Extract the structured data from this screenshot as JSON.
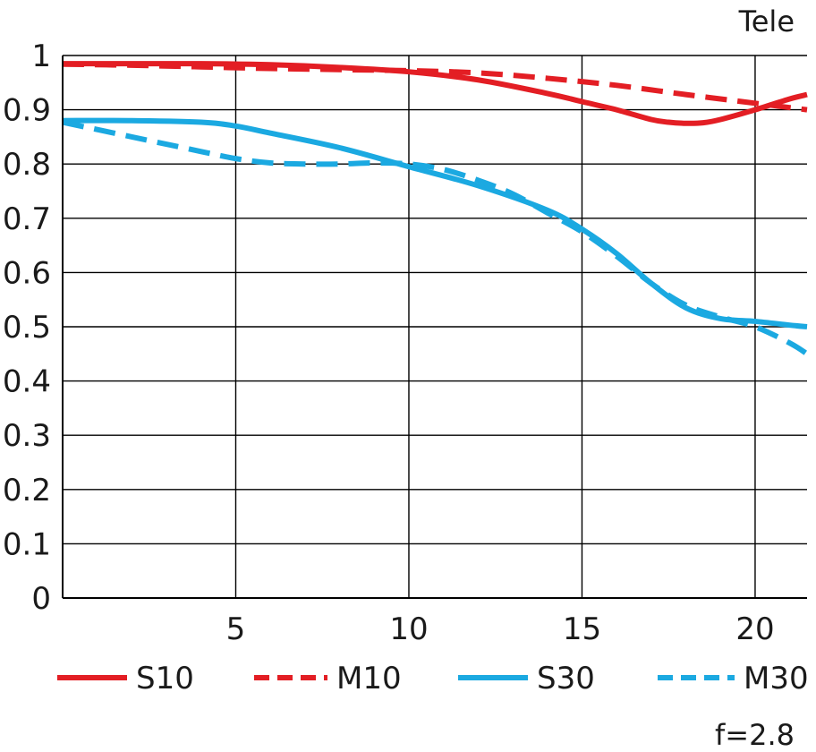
{
  "chart_data": {
    "type": "line",
    "title": "Tele",
    "annotation": "f=2.8",
    "xlim": [
      0,
      21.5
    ],
    "ylim": [
      0,
      1
    ],
    "x_ticks": [
      5,
      10,
      15,
      20
    ],
    "y_ticks": [
      0,
      0.1,
      0.2,
      0.3,
      0.4,
      0.5,
      0.6,
      0.7,
      0.8,
      0.9,
      1
    ],
    "y_tick_labels": [
      "0",
      "0.1",
      "0.2",
      "0.3",
      "0.4",
      "0.5",
      "0.6",
      "0.7",
      "0.8",
      "0.9",
      "1"
    ],
    "x_tick_labels": [
      "5",
      "10",
      "15",
      "20"
    ],
    "grid": true,
    "legend_position": "bottom",
    "series": [
      {
        "name": "S10",
        "color": "#e31e24",
        "dash": "solid",
        "x": [
          0,
          2,
          4,
          6,
          8,
          10,
          12,
          14,
          15,
          16,
          17,
          17.5,
          18,
          18.5,
          19,
          20,
          21,
          21.5
        ],
        "y": [
          0.985,
          0.985,
          0.985,
          0.983,
          0.978,
          0.97,
          0.955,
          0.93,
          0.915,
          0.9,
          0.882,
          0.877,
          0.875,
          0.876,
          0.882,
          0.9,
          0.92,
          0.928
        ]
      },
      {
        "name": "M10",
        "color": "#e31e24",
        "dash": "dashed",
        "x": [
          0,
          2,
          4,
          6,
          8,
          10,
          12,
          14,
          16,
          18,
          20,
          21.5
        ],
        "y": [
          0.984,
          0.982,
          0.979,
          0.976,
          0.974,
          0.972,
          0.968,
          0.958,
          0.945,
          0.928,
          0.912,
          0.9
        ]
      },
      {
        "name": "S30",
        "color": "#1ba9e1",
        "dash": "solid",
        "x": [
          0,
          2,
          4,
          5,
          6,
          8,
          10,
          12,
          14,
          15,
          16,
          17,
          18,
          19,
          20,
          21,
          21.5
        ],
        "y": [
          0.88,
          0.88,
          0.877,
          0.87,
          0.857,
          0.83,
          0.795,
          0.76,
          0.715,
          0.68,
          0.635,
          0.58,
          0.535,
          0.515,
          0.51,
          0.503,
          0.5
        ]
      },
      {
        "name": "M30",
        "color": "#1ba9e1",
        "dash": "dashed",
        "x": [
          0,
          2,
          4,
          5,
          6,
          7,
          8,
          9,
          10,
          11,
          12,
          13,
          14,
          15,
          16,
          17,
          18,
          19,
          20,
          21,
          21.5
        ],
        "y": [
          0.877,
          0.85,
          0.823,
          0.81,
          0.802,
          0.8,
          0.8,
          0.802,
          0.8,
          0.79,
          0.77,
          0.745,
          0.71,
          0.675,
          0.63,
          0.58,
          0.54,
          0.518,
          0.5,
          0.47,
          0.45
        ]
      }
    ]
  }
}
